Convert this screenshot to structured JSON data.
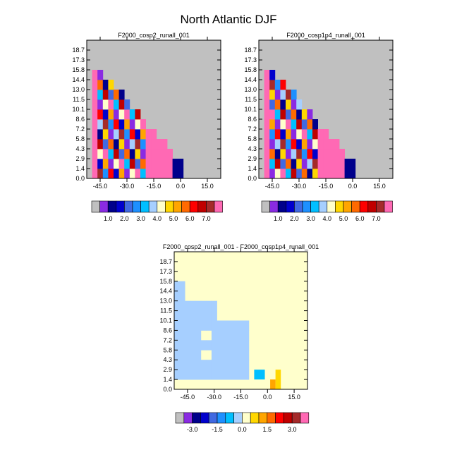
{
  "figure_title": "North Atlantic DJF",
  "chart_data": [
    {
      "type": "heatmap",
      "title": "F2000_cosp2_runall_001",
      "x_ticks": [
        -45.0,
        -30.0,
        -15.0,
        0.0,
        15.0
      ],
      "x_tick_labels": [
        "-45.0",
        "-30.0",
        "-15.0",
        "0.0",
        "15.0"
      ],
      "xlim": [
        -52.5,
        22.5
      ],
      "y_tick_labels": [
        "0.0",
        "1.4",
        "2.9",
        "4.3",
        "5.8",
        "7.2",
        "8.6",
        "10.1",
        "11.5",
        "13.0",
        "14.4",
        "15.8",
        "17.3",
        "18.7"
      ],
      "ylim": [
        0,
        19.4
      ],
      "background": "#c0c0c0",
      "colorbar_colors": [
        "#c0c0c0",
        "#8a2be2",
        "#00008b",
        "#0000cd",
        "#4169e1",
        "#1e90ff",
        "#00bfff",
        "#a6cfff",
        "#ffffcc",
        "#ffd700",
        "#ffa500",
        "#ff6a00",
        "#ff0000",
        "#c00000",
        "#a52a2a",
        "#ff69b4"
      ],
      "colorbar_labels": [
        "1.0",
        "2.0",
        "3.0",
        "4.0",
        "5.0",
        "6.0",
        "7.0"
      ]
    },
    {
      "type": "heatmap",
      "title": "F2000_cosp1p4_runall_001",
      "x_ticks": [
        -45.0,
        -30.0,
        -15.0,
        0.0,
        15.0
      ],
      "x_tick_labels": [
        "-45.0",
        "-30.0",
        "-15.0",
        "0.0",
        "15.0"
      ],
      "xlim": [
        -52.5,
        22.5
      ],
      "y_tick_labels": [
        "0.0",
        "1.4",
        "2.9",
        "4.3",
        "5.8",
        "7.2",
        "8.6",
        "10.1",
        "11.5",
        "13.0",
        "14.4",
        "15.8",
        "17.3",
        "18.7"
      ],
      "ylim": [
        0,
        19.4
      ],
      "background": "#c0c0c0",
      "colorbar_colors": [
        "#c0c0c0",
        "#8a2be2",
        "#00008b",
        "#0000cd",
        "#4169e1",
        "#1e90ff",
        "#00bfff",
        "#a6cfff",
        "#ffffcc",
        "#ffd700",
        "#ffa500",
        "#ff6a00",
        "#ff0000",
        "#c00000",
        "#a52a2a",
        "#ff69b4"
      ],
      "colorbar_labels": [
        "1.0",
        "2.0",
        "3.0",
        "4.0",
        "5.0",
        "6.0",
        "7.0"
      ]
    },
    {
      "type": "heatmap",
      "title": "F2000_cosp2_runall_001 - F2000_cosp1p4_runall_001",
      "x_ticks": [
        -45.0,
        -30.0,
        -15.0,
        0.0,
        15.0
      ],
      "x_tick_labels": [
        "-45.0",
        "-30.0",
        "-15.0",
        "0.0",
        "15.0"
      ],
      "xlim": [
        -52.5,
        22.5
      ],
      "y_tick_labels": [
        "0.0",
        "1.4",
        "2.9",
        "4.3",
        "5.8",
        "7.2",
        "8.6",
        "10.1",
        "11.5",
        "13.0",
        "14.4",
        "15.8",
        "17.3",
        "18.7"
      ],
      "ylim": [
        0,
        19.4
      ],
      "background": "#ffffcc",
      "colorbar_colors": [
        "#c0c0c0",
        "#8a2be2",
        "#00008b",
        "#0000cd",
        "#4169e1",
        "#1e90ff",
        "#00bfff",
        "#a6cfff",
        "#ffffcc",
        "#ffd700",
        "#ffa500",
        "#ff6a00",
        "#ff0000",
        "#c00000",
        "#a52a2a",
        "#ff69b4"
      ],
      "colorbar_labels": [
        "-3.0",
        "-1.5",
        "0.0",
        "1.5",
        "3.0"
      ]
    }
  ]
}
